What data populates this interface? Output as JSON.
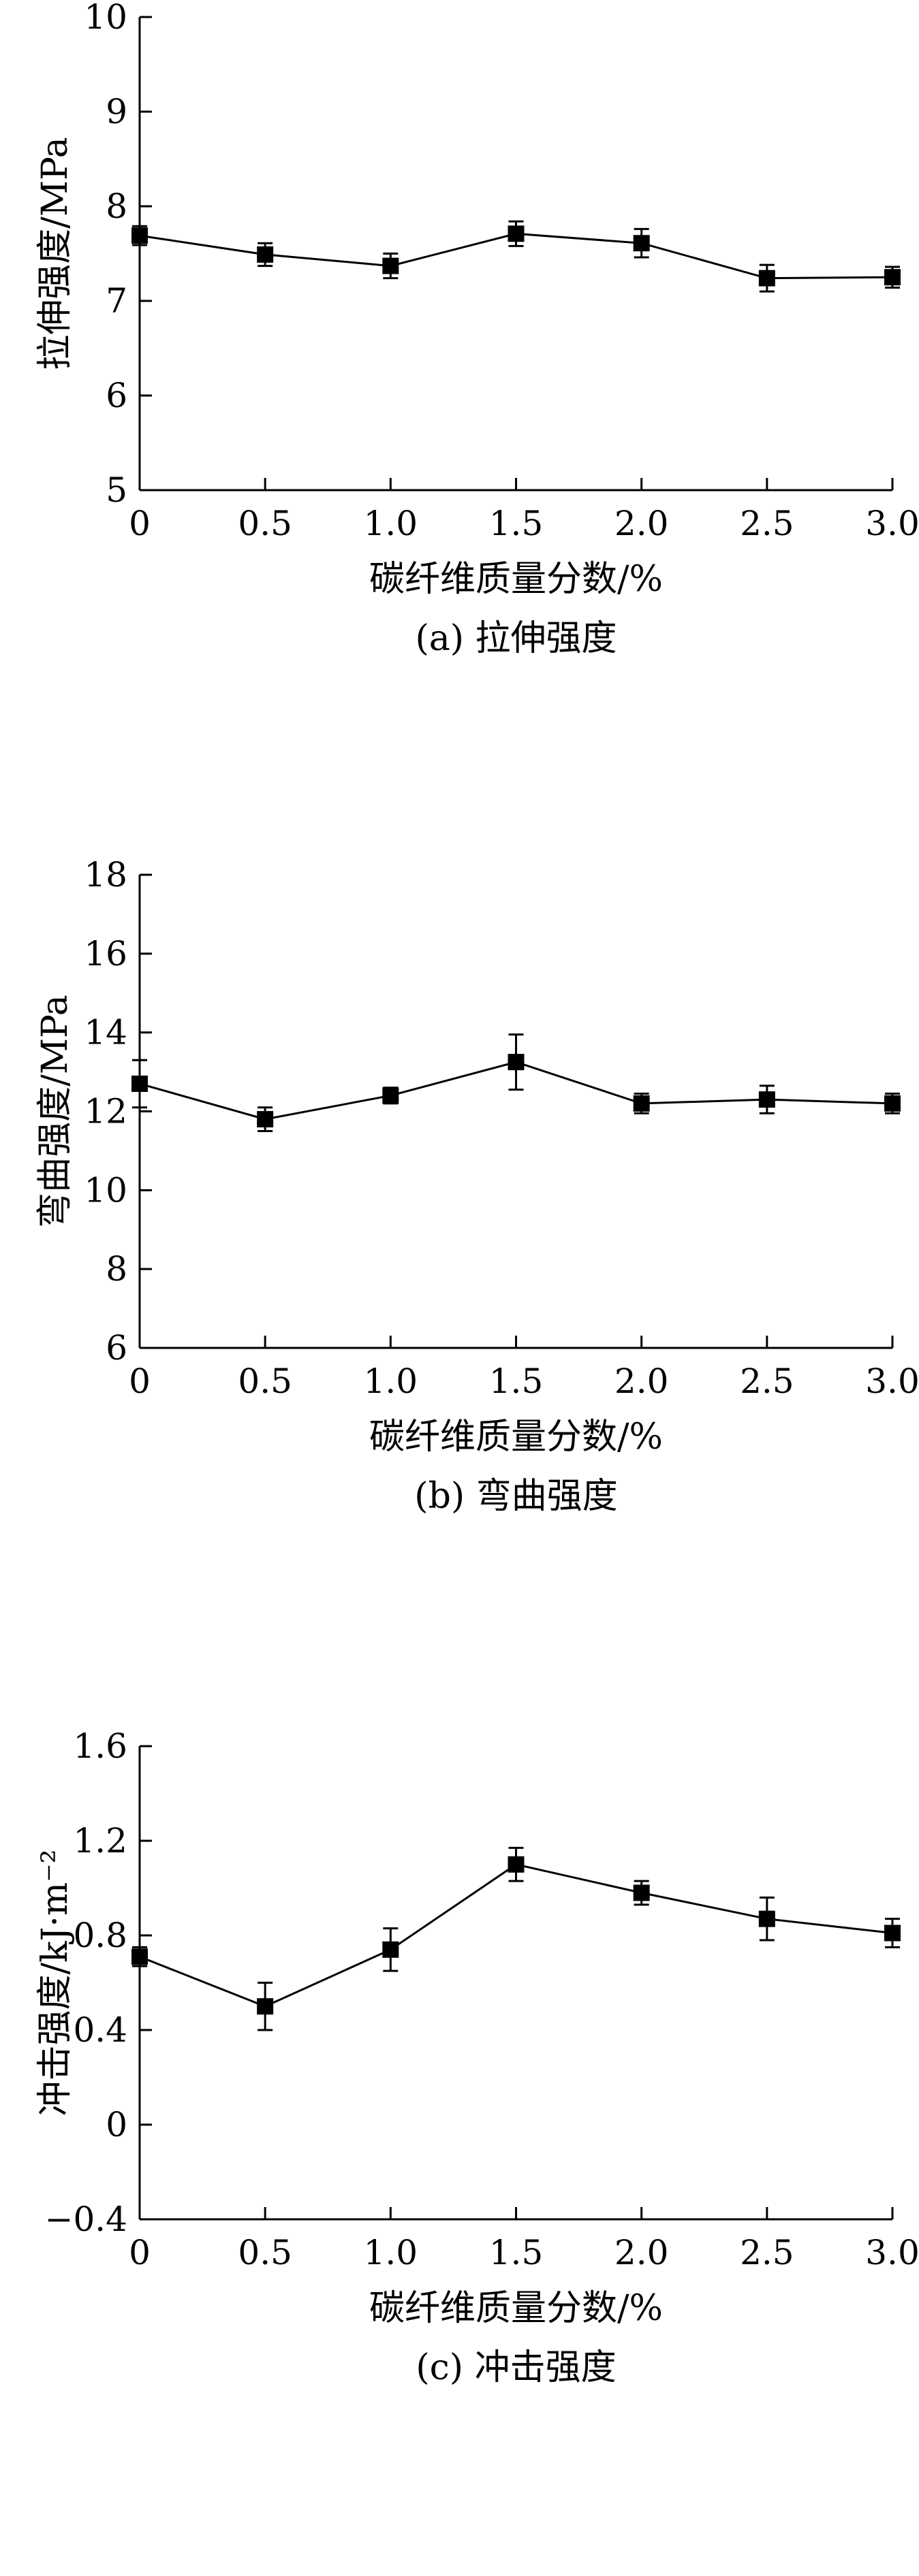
{
  "chart_data": [
    {
      "type": "line",
      "caption": "(a) 拉伸强度",
      "xlabel": "碳纤维质量分数/%",
      "ylabel": "拉伸强度/MPa",
      "x": [
        0,
        0.5,
        1.0,
        1.5,
        2.0,
        2.5,
        3.0
      ],
      "x_tick_labels": [
        "0",
        "0.5",
        "1.0",
        "1.5",
        "2.0",
        "2.5",
        "3.0"
      ],
      "xlim": [
        0,
        3.0
      ],
      "ylim": [
        5,
        10
      ],
      "y_ticks": [
        5,
        6,
        7,
        8,
        9,
        10
      ],
      "y_tick_labels": [
        "5",
        "6",
        "7",
        "8",
        "9",
        "10"
      ],
      "series": [
        {
          "values": [
            7.69,
            7.49,
            7.37,
            7.71,
            7.61,
            7.24,
            7.25
          ],
          "errors": [
            0.1,
            0.12,
            0.13,
            0.13,
            0.15,
            0.14,
            0.11
          ]
        }
      ]
    },
    {
      "type": "line",
      "caption": "(b) 弯曲强度",
      "xlabel": "碳纤维质量分数/%",
      "ylabel": "弯曲强度/MPa",
      "x": [
        0,
        0.5,
        1.0,
        1.5,
        2.0,
        2.5,
        3.0
      ],
      "x_tick_labels": [
        "0",
        "0.5",
        "1.0",
        "1.5",
        "2.0",
        "2.5",
        "3.0"
      ],
      "xlim": [
        0,
        3.0
      ],
      "ylim": [
        6,
        18
      ],
      "y_ticks": [
        6,
        8,
        10,
        12,
        14,
        16,
        18
      ],
      "y_tick_labels": [
        "6",
        "8",
        "10",
        "12",
        "14",
        "16",
        "18"
      ],
      "series": [
        {
          "values": [
            12.7,
            11.8,
            12.4,
            13.25,
            12.2,
            12.3,
            12.2
          ],
          "errors": [
            0.6,
            0.3,
            0.2,
            0.7,
            0.25,
            0.35,
            0.25
          ]
        }
      ]
    },
    {
      "type": "line",
      "caption": "(c) 冲击强度",
      "xlabel": "碳纤维质量分数/%",
      "ylabel": "冲击强度/kJ·m⁻²",
      "x": [
        0,
        0.5,
        1.0,
        1.5,
        2.0,
        2.5,
        3.0
      ],
      "x_tick_labels": [
        "0",
        "0.5",
        "1.0",
        "1.5",
        "2.0",
        "2.5",
        "3.0"
      ],
      "xlim": [
        0,
        3.0
      ],
      "ylim": [
        -0.4,
        1.6
      ],
      "y_ticks": [
        -0.4,
        0,
        0.4,
        0.8,
        1.2,
        1.6
      ],
      "y_tick_labels": [
        "−0.4",
        "0",
        "0.4",
        "0.8",
        "1.2",
        "1.6"
      ],
      "series": [
        {
          "values": [
            0.71,
            0.5,
            0.74,
            1.1,
            0.98,
            0.87,
            0.81
          ],
          "errors": [
            0.04,
            0.1,
            0.09,
            0.07,
            0.05,
            0.09,
            0.06
          ]
        }
      ]
    }
  ]
}
